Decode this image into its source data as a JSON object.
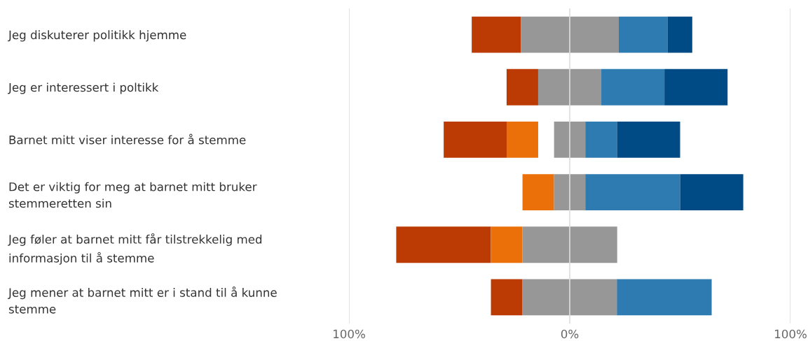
{
  "chart_data": {
    "type": "bar",
    "orientation": "horizontal",
    "categories": [
      "Jeg diskuterer politikk hjemme",
      "Jeg er interessert i poltikk",
      "Barnet mitt viser interesse for å stemme",
      "Det er viktig for meg at barnet mitt bruker\nstemmeretten sin",
      "Jeg føler at barnet mitt får tilstrekkelig med\ninformasjon til å stemme",
      "Jeg mener at barnet mitt er i stand til å kunne\nstemme"
    ],
    "series": [
      {
        "color": "#bc3a04",
        "base": [
          -44.4,
          -28.6,
          -57.1,
          null,
          -78.6,
          -35.7
        ],
        "values": [
          22.2,
          14.3,
          28.6,
          null,
          42.9,
          14.3
        ]
      },
      {
        "color": "#eb700a",
        "base": [
          null,
          null,
          -28.6,
          -21.4,
          -35.7,
          null
        ],
        "values": [
          null,
          null,
          14.3,
          14.3,
          14.3,
          null
        ]
      },
      {
        "color": "#979797",
        "base": [
          -22.2,
          -14.3,
          -7.1,
          -7.1,
          -21.4,
          -21.4
        ],
        "values": [
          44.4,
          28.6,
          14.3,
          14.3,
          42.9,
          42.9
        ]
      },
      {
        "color": "#2e7bb2",
        "base": [
          22.2,
          14.3,
          7.1,
          7.1,
          null,
          21.4
        ],
        "values": [
          22.2,
          28.6,
          14.3,
          42.9,
          null,
          42.9
        ]
      },
      {
        "color": "#004a86",
        "base": [
          44.4,
          42.9,
          21.4,
          50.0,
          null,
          null
        ],
        "values": [
          11.1,
          28.6,
          28.6,
          28.6,
          null,
          null
        ]
      }
    ],
    "xlim": [
      -100,
      100
    ],
    "xticks": [
      {
        "value": -100,
        "label": "100%"
      },
      {
        "value": 0,
        "label": "0%"
      },
      {
        "value": 100,
        "label": "100%"
      }
    ],
    "grid": "x",
    "legend": false
  }
}
